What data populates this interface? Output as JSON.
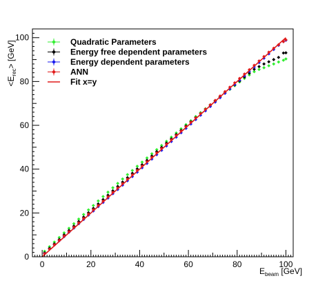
{
  "chart_data": {
    "type": "scatter",
    "xlabel": {
      "main": "E",
      "sub": "beam",
      "unit": " [GeV]"
    },
    "ylabel": {
      "pre": "<E",
      "sub": "rec",
      "post": "> [GeV]"
    },
    "xlim": [
      -4,
      103
    ],
    "ylim": [
      0,
      104
    ],
    "x_ticks": [
      0,
      20,
      40,
      60,
      80,
      100
    ],
    "y_ticks": [
      0,
      20,
      40,
      60,
      80,
      100
    ],
    "grid": false,
    "legend_position": "top-left",
    "series": [
      {
        "name": "Quadratic Parameters",
        "color": "#33ee33",
        "marker": "diamond",
        "x": [
          1,
          3,
          5,
          7,
          9,
          11,
          13,
          15,
          17,
          19,
          21,
          23,
          25,
          27,
          29,
          31,
          33,
          35,
          37,
          39,
          41,
          43,
          45,
          47,
          49,
          51,
          53,
          55,
          57,
          59,
          61,
          63,
          65,
          67,
          69,
          71,
          73,
          75,
          77,
          79,
          81,
          83,
          85,
          87,
          89,
          91,
          93,
          95,
          97,
          99,
          100
        ],
        "y": [
          2.5,
          4.6,
          6.7,
          8.8,
          10.9,
          13.0,
          15.1,
          17.2,
          19.3,
          21.4,
          23.4,
          25.5,
          27.5,
          29.5,
          31.5,
          33.5,
          35.5,
          37.5,
          39.4,
          41.3,
          43.2,
          45.1,
          47.0,
          48.9,
          50.8,
          52.7,
          54.6,
          56.5,
          58.4,
          60.3,
          62.1,
          64.0,
          65.8,
          67.6,
          69.4,
          71.2,
          73.0,
          74.7,
          76.4,
          78.1,
          79.8,
          81.4,
          83.0,
          84.5,
          85.5,
          86.3,
          87.2,
          88.0,
          88.9,
          89.7,
          90.3
        ]
      },
      {
        "name": "Energy free dependent parameters",
        "color": "#000000",
        "marker": "diamond",
        "x": [
          1,
          3,
          5,
          7,
          9,
          11,
          13,
          15,
          17,
          19,
          21,
          23,
          25,
          27,
          29,
          31,
          33,
          35,
          37,
          39,
          41,
          43,
          45,
          47,
          49,
          51,
          53,
          55,
          57,
          59,
          61,
          63,
          65,
          67,
          69,
          71,
          73,
          75,
          77,
          79,
          81,
          83,
          85,
          87,
          89,
          91,
          93,
          95,
          97,
          99,
          100
        ],
        "y": [
          1.8,
          3.9,
          5.9,
          7.9,
          10.0,
          12.0,
          14.0,
          16.1,
          18.1,
          20.1,
          22.1,
          24.1,
          26.1,
          28.1,
          30.1,
          32.1,
          34.1,
          36.1,
          38.1,
          40.1,
          42.0,
          44.0,
          46.0,
          48.0,
          49.9,
          51.9,
          53.8,
          55.8,
          57.7,
          59.7,
          61.6,
          63.5,
          65.4,
          67.3,
          69.2,
          71.1,
          72.9,
          74.8,
          76.6,
          78.4,
          80.2,
          82.0,
          83.8,
          85.6,
          86.8,
          88.0,
          89.0,
          90.0,
          91.0,
          93.0,
          93.1
        ]
      },
      {
        "name": "Energy dependent parameters",
        "color": "#1a1aee",
        "marker": "diamond",
        "x": [
          1,
          3,
          5,
          7,
          9,
          11,
          13,
          15,
          17,
          19,
          21,
          23,
          25,
          27,
          29,
          31,
          33,
          35,
          37,
          39,
          41,
          43,
          45,
          47,
          49,
          51,
          53,
          55,
          57,
          59,
          61,
          63,
          65,
          67,
          69,
          71,
          73,
          75,
          77,
          79,
          81,
          83,
          85,
          87,
          89,
          91,
          93,
          95,
          97,
          99,
          100
        ],
        "y": [
          1.5,
          3.5,
          5.4,
          7.3,
          9.2,
          11.2,
          13.1,
          15.1,
          17.0,
          19.0,
          20.9,
          22.9,
          24.8,
          26.8,
          28.8,
          30.7,
          32.7,
          34.7,
          36.6,
          38.6,
          40.6,
          42.6,
          44.6,
          46.6,
          48.6,
          50.6,
          52.6,
          54.6,
          56.6,
          58.6,
          60.6,
          62.6,
          64.6,
          66.6,
          68.6,
          70.6,
          72.6,
          74.6,
          76.6,
          78.6,
          80.6,
          82.6,
          84.6,
          86.6,
          88.6,
          90.6,
          92.6,
          94.6,
          96.5,
          98.2,
          98.8
        ]
      },
      {
        "name": "ANN",
        "color": "#e01a1a",
        "marker": "diamond",
        "x": [
          1,
          3,
          5,
          7,
          9,
          11,
          13,
          15,
          17,
          19,
          21,
          23,
          25,
          27,
          29,
          31,
          33,
          35,
          37,
          39,
          41,
          43,
          45,
          47,
          49,
          51,
          53,
          55,
          57,
          59,
          61,
          63,
          65,
          67,
          69,
          71,
          73,
          75,
          77,
          79,
          81,
          83,
          85,
          87,
          89,
          91,
          93,
          95,
          97,
          99,
          100
        ],
        "y": [
          1.4,
          3.5,
          5.5,
          7.5,
          9.5,
          11.5,
          13.5,
          15.5,
          17.5,
          19.5,
          21.5,
          23.4,
          25.4,
          27.4,
          29.4,
          31.4,
          33.4,
          35.4,
          37.4,
          39.4,
          41.4,
          43.4,
          45.4,
          47.4,
          49.4,
          51.4,
          53.4,
          55.4,
          57.4,
          59.4,
          61.4,
          63.4,
          65.4,
          67.4,
          69.4,
          71.4,
          73.4,
          75.4,
          77.4,
          79.4,
          81.4,
          83.4,
          85.4,
          87.4,
          89.4,
          91.4,
          93.4,
          95.2,
          96.8,
          98.2,
          99.0
        ]
      },
      {
        "name": "Fit x=y",
        "color": "#e01a1a",
        "marker": "line",
        "x": [
          0,
          100
        ],
        "y": [
          0,
          100
        ]
      }
    ]
  }
}
